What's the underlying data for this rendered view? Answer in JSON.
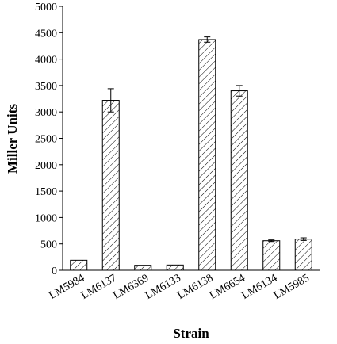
{
  "chart_data": {
    "type": "bar",
    "xlabel": "Strain",
    "ylabel": "Miller Units",
    "ylim": [
      0,
      5000
    ],
    "yticks": [
      0,
      500,
      1000,
      1500,
      2000,
      2500,
      3000,
      3500,
      4000,
      4500,
      5000
    ],
    "categories": [
      "LM5984",
      "LM6137",
      "LM6369",
      "LM6133",
      "LM6138",
      "LM6654",
      "LM6134",
      "LM5985"
    ],
    "values": [
      190,
      3220,
      95,
      100,
      4370,
      3400,
      560,
      590
    ],
    "errors": [
      0,
      220,
      0,
      0,
      50,
      100,
      15,
      25
    ],
    "fill_pattern": "diagonal-hatch",
    "grid": false,
    "legend": "none",
    "colors": {
      "bar_stroke": "#000000",
      "hatch": "#000000",
      "background": "#ffffff"
    }
  }
}
